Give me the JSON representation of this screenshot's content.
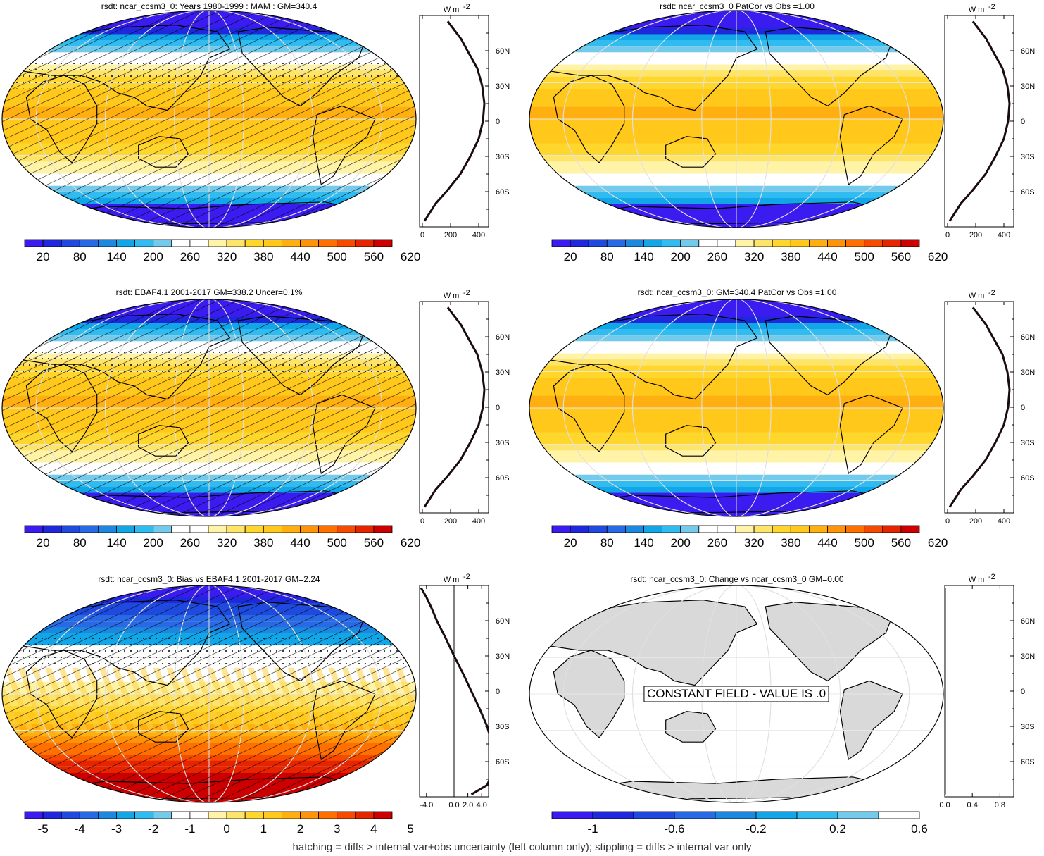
{
  "footer": "hatching = diffs > internal var+obs uncertainty (left column only); stippling = diffs > internal var only",
  "colors": {
    "field": [
      "#3a1cf0",
      "#1f28dc",
      "#1f4ae0",
      "#2869e6",
      "#1c88e0",
      "#10a6e8",
      "#30bcf0",
      "#74caea",
      "#ffffff",
      "#ffffff",
      "#fff3a8",
      "#ffe46a",
      "#ffd62c",
      "#ffc81a",
      "#ffb010",
      "#ff9408",
      "#ff7000",
      "#f54a00",
      "#e62400",
      "#cc0000"
    ],
    "change": [
      "#3a1cf0",
      "#1f28dc",
      "#1f4ae0",
      "#2869e6",
      "#1c88e0",
      "#10a6e8",
      "#30bcf0",
      "#74caea",
      "#ffffff"
    ],
    "land_gray": "#d9d9d9",
    "profile_line": "#1a0a14"
  },
  "chart_data": [
    {
      "panel": "row1-left",
      "type": "heatmap",
      "title": "rsdt: ncar_ccsm3_0: Years 1980-1999 : MAM : GM=340.4",
      "colorbar_labels": [
        "20",
        "80",
        "140",
        "200",
        "260",
        "320",
        "380",
        "440",
        "500",
        "560",
        "620"
      ],
      "zonal_mean": {
        "unit_label": "W m",
        "unit_sup": "-2",
        "x_ticks": [
          "0",
          "200",
          "400"
        ],
        "lat_ticks": [
          "60N",
          "30N",
          "0",
          "30S",
          "60S"
        ],
        "xlim": [
          -20,
          470
        ],
        "lat": [
          85,
          70,
          60,
          45,
          30,
          15,
          0,
          -15,
          -30,
          -45,
          -60,
          -70,
          -85
        ],
        "values": [
          180,
          275,
          320,
          390,
          425,
          440,
          430,
          400,
          340,
          270,
          170,
          95,
          15
        ]
      }
    },
    {
      "panel": "row1-right",
      "type": "heatmap",
      "title": "rsdt: ncar_ccsm3_0 PatCor vs Obs =1.00",
      "colorbar_labels": [
        "20",
        "80",
        "140",
        "200",
        "260",
        "320",
        "380",
        "440",
        "500",
        "560",
        "620"
      ],
      "zonal_mean": {
        "unit_label": "W m",
        "unit_sup": "-2",
        "x_ticks": [
          "0",
          "200",
          "400"
        ],
        "lat_ticks": [
          "60N",
          "30N",
          "0",
          "30S",
          "60S"
        ],
        "xlim": [
          -20,
          470
        ],
        "lat": [
          85,
          70,
          60,
          45,
          30,
          15,
          0,
          -15,
          -30,
          -45,
          -60,
          -70,
          -85
        ],
        "values": [
          180,
          275,
          320,
          390,
          425,
          440,
          430,
          400,
          340,
          270,
          170,
          95,
          15
        ]
      }
    },
    {
      "panel": "row2-left",
      "type": "heatmap",
      "title": "rsdt: EBAF4.1 2001-2017 GM=338.2 Uncer=0.1%",
      "colorbar_labels": [
        "20",
        "80",
        "140",
        "200",
        "260",
        "320",
        "380",
        "440",
        "500",
        "560",
        "620"
      ],
      "zonal_mean": {
        "unit_label": "W m",
        "unit_sup": "-2",
        "x_ticks": [
          "0",
          "200",
          "400"
        ],
        "lat_ticks": [
          "60N",
          "30N",
          "0",
          "30S",
          "60S"
        ],
        "xlim": [
          -20,
          470
        ],
        "lat": [
          85,
          70,
          60,
          45,
          30,
          15,
          0,
          -15,
          -30,
          -45,
          -60,
          -70,
          -85
        ],
        "values": [
          180,
          275,
          320,
          390,
          425,
          440,
          430,
          400,
          340,
          270,
          170,
          95,
          15
        ]
      }
    },
    {
      "panel": "row2-right",
      "type": "heatmap",
      "title": "rsdt: ncar_ccsm3_0: GM=340.4 PatCor vs Obs =1.00",
      "colorbar_labels": [
        "20",
        "80",
        "140",
        "200",
        "260",
        "320",
        "380",
        "440",
        "500",
        "560",
        "620"
      ],
      "zonal_mean": {
        "unit_label": "W m",
        "unit_sup": "-2",
        "x_ticks": [
          "0",
          "200",
          "400"
        ],
        "lat_ticks": [
          "60N",
          "30N",
          "0",
          "30S",
          "60S"
        ],
        "xlim": [
          -20,
          470
        ],
        "lat": [
          85,
          70,
          60,
          45,
          30,
          15,
          0,
          -15,
          -30,
          -45,
          -60,
          -70,
          -85
        ],
        "values": [
          180,
          275,
          320,
          390,
          425,
          440,
          430,
          400,
          340,
          270,
          170,
          95,
          15
        ]
      }
    },
    {
      "panel": "row3-left",
      "type": "heatmap",
      "title": "rsdt: ncar_ccsm3_0: Bias vs EBAF4.1 2001-2017 GM=2.24",
      "colorbar_labels": [
        "-5",
        "-4",
        "-3",
        "-2",
        "-1",
        "0",
        "1",
        "2",
        "3",
        "4",
        "5"
      ],
      "zonal_mean": {
        "unit_label": "W m",
        "unit_sup": "-2",
        "x_ticks": [
          "-4.0",
          "0.0",
          "2.0",
          "4.0"
        ],
        "lat_ticks": [
          "60N",
          "30N",
          "0",
          "30S",
          "60S"
        ],
        "xlim": [
          -5,
          5
        ],
        "lat": [
          88,
          80,
          70,
          60,
          45,
          30,
          15,
          0,
          -15,
          -30,
          -45,
          -60,
          -70,
          -80,
          -88
        ],
        "values": [
          -4.8,
          -4.0,
          -3.2,
          -2.5,
          -1.2,
          0.0,
          1.3,
          2.5,
          3.7,
          4.8,
          5.5,
          5.8,
          5.5,
          4.8,
          2.5
        ]
      }
    },
    {
      "panel": "row3-right",
      "type": "heatmap",
      "title": "rsdt: ncar_ccsm3_0: Change vs ncar_ccsm3_0 GM=0.00",
      "annotation": "CONSTANT FIELD - VALUE IS .0",
      "colorbar_labels": [
        "-1",
        "-0.6",
        "-0.2",
        "0.2",
        "0.6"
      ],
      "zonal_mean": {
        "unit_label": "W m",
        "unit_sup": "-2",
        "x_ticks": [
          "0.0",
          "0.4",
          "0.8"
        ],
        "lat_ticks": [
          "60N",
          "30N",
          "0",
          "30S",
          "60S"
        ],
        "xlim": [
          0,
          1
        ],
        "lat": [
          88,
          -88
        ],
        "values": [
          0,
          0
        ]
      }
    }
  ]
}
